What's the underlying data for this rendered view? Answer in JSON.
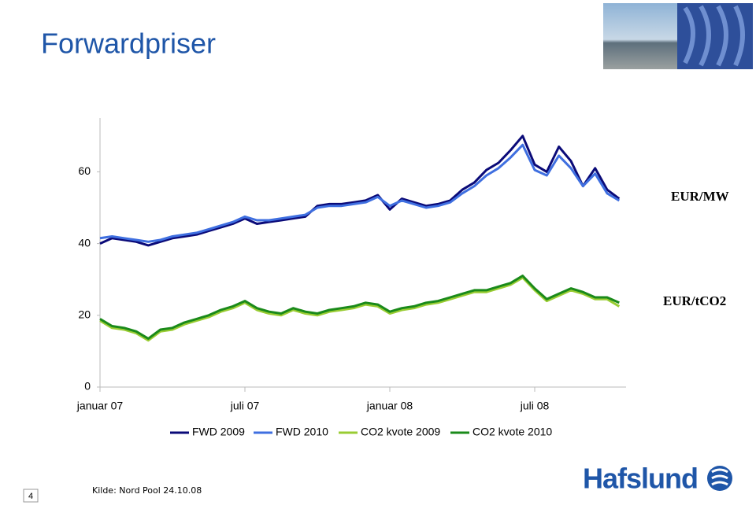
{
  "title": "Forwardpriser",
  "source": "Kilde: Nord Pool 24.10.08",
  "page_number": "4",
  "logo": "Hafslund",
  "chart_data": {
    "type": "line",
    "categories": [
      "januar 07",
      null,
      null,
      null,
      null,
      null,
      null,
      null,
      null,
      null,
      null,
      null,
      "juli 07",
      null,
      null,
      null,
      null,
      null,
      null,
      null,
      null,
      null,
      null,
      null,
      "januar 08",
      null,
      null,
      null,
      null,
      null,
      null,
      null,
      null,
      null,
      null,
      null,
      "juli 08",
      null,
      null,
      null,
      null,
      null,
      null,
      null
    ],
    "ylim": [
      0,
      75
    ],
    "yticks": [
      0,
      20,
      40,
      60
    ],
    "grid": false,
    "annotations": [
      "EUR/MW",
      "EUR/tCO2"
    ],
    "series": [
      {
        "name": "FWD 2009",
        "color": "#0a0a78",
        "values": [
          40,
          41.5,
          41,
          40.5,
          39.5,
          40.5,
          41.5,
          42,
          42.5,
          43.5,
          44.5,
          45.5,
          47,
          45.5,
          46,
          46.5,
          47,
          47.5,
          50.5,
          51,
          51,
          51.5,
          52,
          53.5,
          49.5,
          52.5,
          51.5,
          50.5,
          51,
          52,
          55,
          57,
          60.5,
          62.5,
          66,
          70,
          62,
          60,
          67,
          63,
          56,
          61,
          55,
          52.5
        ]
      },
      {
        "name": "FWD 2010",
        "color": "#3f6fe0",
        "values": [
          41.5,
          42,
          41.5,
          41,
          40.5,
          41,
          42,
          42.5,
          43,
          44,
          45,
          46,
          47.5,
          46.5,
          46.5,
          47,
          47.5,
          48,
          50,
          50.5,
          50.5,
          51,
          51.5,
          53,
          50.5,
          52,
          51,
          50,
          50.5,
          51.5,
          54,
          56,
          59,
          61,
          64,
          67.5,
          60.5,
          59,
          64.5,
          61,
          56,
          59.5,
          54,
          52
        ]
      },
      {
        "name": "CO2 kvote 2009",
        "color": "#99cc33",
        "values": [
          18.5,
          16.5,
          16,
          15,
          13,
          15.5,
          16,
          17.5,
          18.5,
          19.5,
          21,
          22,
          23.5,
          21.5,
          20.5,
          20,
          21.5,
          20.5,
          20,
          21,
          21.5,
          22,
          23,
          22.5,
          20.5,
          21.5,
          22,
          23,
          23.5,
          24.5,
          25.5,
          26.5,
          26.5,
          27.5,
          28.5,
          30.5,
          27,
          24,
          25.5,
          27,
          26,
          24.5,
          24.5,
          22.5
        ]
      },
      {
        "name": "CO2 kvote 2010",
        "color": "#1a8a1a",
        "values": [
          19,
          17,
          16.5,
          15.5,
          13.5,
          16,
          16.5,
          18,
          19,
          20,
          21.5,
          22.5,
          24,
          22,
          21,
          20.5,
          22,
          21,
          20.5,
          21.5,
          22,
          22.5,
          23.5,
          23,
          21,
          22,
          22.5,
          23.5,
          24,
          25,
          26,
          27,
          27,
          28,
          29,
          31,
          27.5,
          24.5,
          26,
          27.5,
          26.5,
          25,
          25,
          23.5
        ]
      }
    ]
  }
}
